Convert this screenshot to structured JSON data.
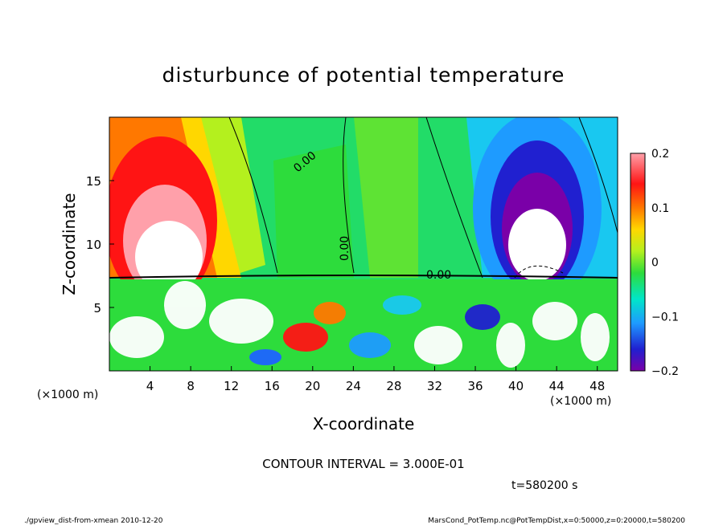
{
  "chart_data": {
    "type": "heatmap",
    "title": "disturbunce of potential temperature",
    "xlabel": "X-coordinate",
    "ylabel": "Z-coordinate",
    "x_unit_left": "(×1000 m)",
    "x_unit_right": "(×1000 m)",
    "xlim": [
      0,
      50
    ],
    "ylim": [
      0,
      20
    ],
    "xticks": [
      "4",
      "8",
      "12",
      "16",
      "20",
      "24",
      "28",
      "32",
      "36",
      "40",
      "44",
      "48"
    ],
    "yticks": [
      "5",
      "10",
      "15"
    ],
    "colorbar": {
      "range": [
        -0.2,
        0.2
      ],
      "labels": [
        "0.2",
        "0.1",
        "0",
        "−0.1",
        "−0.2"
      ],
      "colors": [
        "#7a00a8",
        "#2020d0",
        "#1e64ff",
        "#1e9bff",
        "#19c8f0",
        "#00e6c8",
        "#19dc8c",
        "#2ddc3c",
        "#78e61e",
        "#b4f01e",
        "#e6f01e",
        "#ffd700",
        "#ffa500",
        "#ff7800",
        "#ff3c00",
        "#ff1414",
        "#ff5a64",
        "#ffa0aa"
      ]
    },
    "contour_labels": [
      "0.00",
      "0.00",
      "0.00"
    ],
    "contour_interval_text": "CONTOUR INTERVAL = 3.000E-01",
    "time_label": "t=580200 s"
  },
  "footer": {
    "left": "./gpview_dist-from-xmean  2010-12-20",
    "right": "MarsCond_PotTemp.nc@PotTempDist,x=0:50000,z=0:20000,t=580200"
  }
}
